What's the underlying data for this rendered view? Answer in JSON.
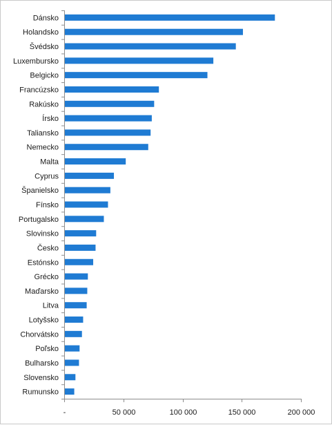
{
  "chart_data": {
    "type": "bar",
    "orientation": "horizontal",
    "title": "",
    "xlabel": "",
    "ylabel": "",
    "xlim": [
      0,
      200000
    ],
    "grid": false,
    "legend": "none",
    "bar_color": "#1f7bd3",
    "categories": [
      "Dánsko",
      "Holandsko",
      "Švédsko",
      "Luxembursko",
      "Belgicko",
      "Francúzsko",
      "Rakúsko",
      "Írsko",
      "Taliansko",
      "Nemecko",
      "Malta",
      "Cyprus",
      "Španielsko",
      "Fínsko",
      "Portugalsko",
      "Slovinsko",
      "Česko",
      "Estónsko",
      "Grécko",
      "Maďarsko",
      "Litva",
      "Lotyšsko",
      "Chorvátsko",
      "Poľsko",
      "Bulharsko",
      "Slovensko",
      "Rumunsko"
    ],
    "values": [
      178000,
      151000,
      145000,
      126000,
      121000,
      80000,
      76000,
      74000,
      73000,
      71000,
      52000,
      42000,
      39000,
      37000,
      33500,
      27000,
      26500,
      24500,
      20000,
      19500,
      19000,
      16000,
      15000,
      13000,
      12500,
      9500,
      8500
    ],
    "ticks": [
      {
        "value": 0,
        "label": "-"
      },
      {
        "value": 50000,
        "label": "50 000"
      },
      {
        "value": 100000,
        "label": "100 000"
      },
      {
        "value": 150000,
        "label": "150 000"
      },
      {
        "value": 200000,
        "label": "200 000"
      }
    ]
  }
}
